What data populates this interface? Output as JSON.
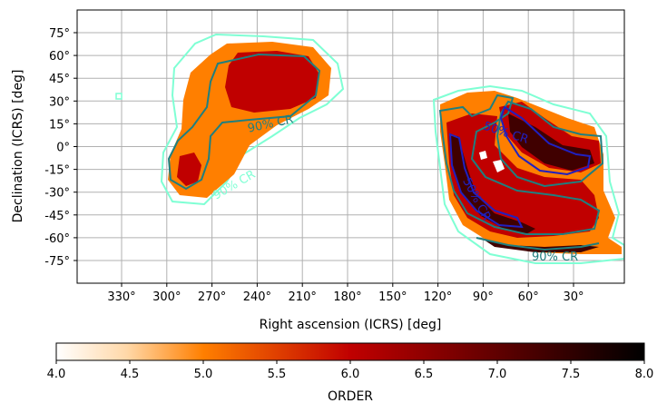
{
  "chart_data": {
    "type": "heatmap",
    "title": "",
    "xlabel": "Right ascension (ICRS) [deg]",
    "ylabel": "Declination (ICRS) [deg]",
    "xlim": [
      360,
      0
    ],
    "ylim": [
      -90,
      90
    ],
    "x_ticks": [
      330,
      300,
      270,
      240,
      210,
      180,
      150,
      120,
      90,
      60,
      30
    ],
    "x_tick_labels": [
      "330°",
      "300°",
      "270°",
      "240°",
      "210°",
      "180°",
      "150°",
      "120°",
      "90°",
      "60°",
      "30°"
    ],
    "y_ticks": [
      75,
      60,
      45,
      30,
      15,
      0,
      -15,
      -30,
      -45,
      -60,
      -75
    ],
    "y_tick_labels": [
      "75°",
      "60°",
      "45°",
      "30°",
      "15°",
      "0°",
      "-15°",
      "-30°",
      "-45°",
      "-60°",
      "-75°"
    ],
    "grid": true,
    "colorbar": {
      "label": "ORDER",
      "range": [
        4.0,
        8.0
      ],
      "ticks": [
        4.0,
        4.5,
        5.0,
        5.5,
        6.0,
        6.5,
        7.0,
        7.5,
        8.0
      ],
      "tick_labels": [
        "4.0",
        "4.5",
        "5.0",
        "5.5",
        "6.0",
        "6.5",
        "7.0",
        "7.5",
        "8.0"
      ],
      "colormap": "gist_heat_r",
      "orientation": "horizontal"
    },
    "regions": [
      {
        "order": 5,
        "color": "#ff7f00",
        "ra": [
          300,
          180
        ],
        "dec": [
          -35,
          65
        ]
      },
      {
        "order": 6,
        "color": "#c00000",
        "ra": [
          255,
          195
        ],
        "dec": [
          25,
          60
        ]
      },
      {
        "order": 6,
        "color": "#c00000",
        "ra": [
          300,
          275
        ],
        "dec": [
          -25,
          -5
        ]
      },
      {
        "order": 5,
        "color": "#ff7f00",
        "ra": [
          125,
          0
        ],
        "dec": [
          -70,
          35
        ]
      },
      {
        "order": 6,
        "color": "#c00000",
        "ra": [
          115,
          15
        ],
        "dec": [
          -65,
          20
        ]
      },
      {
        "order": 7,
        "color": "#400000",
        "ra": [
          110,
          20
        ],
        "dec": [
          -60,
          15
        ]
      }
    ],
    "contours": [
      {
        "name": "90% CR",
        "color": "#7fffd4"
      },
      {
        "name": "90% CR",
        "color": "#1f7f7f"
      },
      {
        "name": "50% CR",
        "color": "#2020c0"
      }
    ],
    "contour_labels": [
      "90% CR",
      "90% CR",
      "50% CR",
      "50% CR",
      "90% CR"
    ]
  },
  "colors": {
    "grid": "#b0b0b0",
    "outer_contour": "#7fffd4",
    "mid_contour": "#1f7f7f",
    "inner_contour": "#2020c0"
  }
}
